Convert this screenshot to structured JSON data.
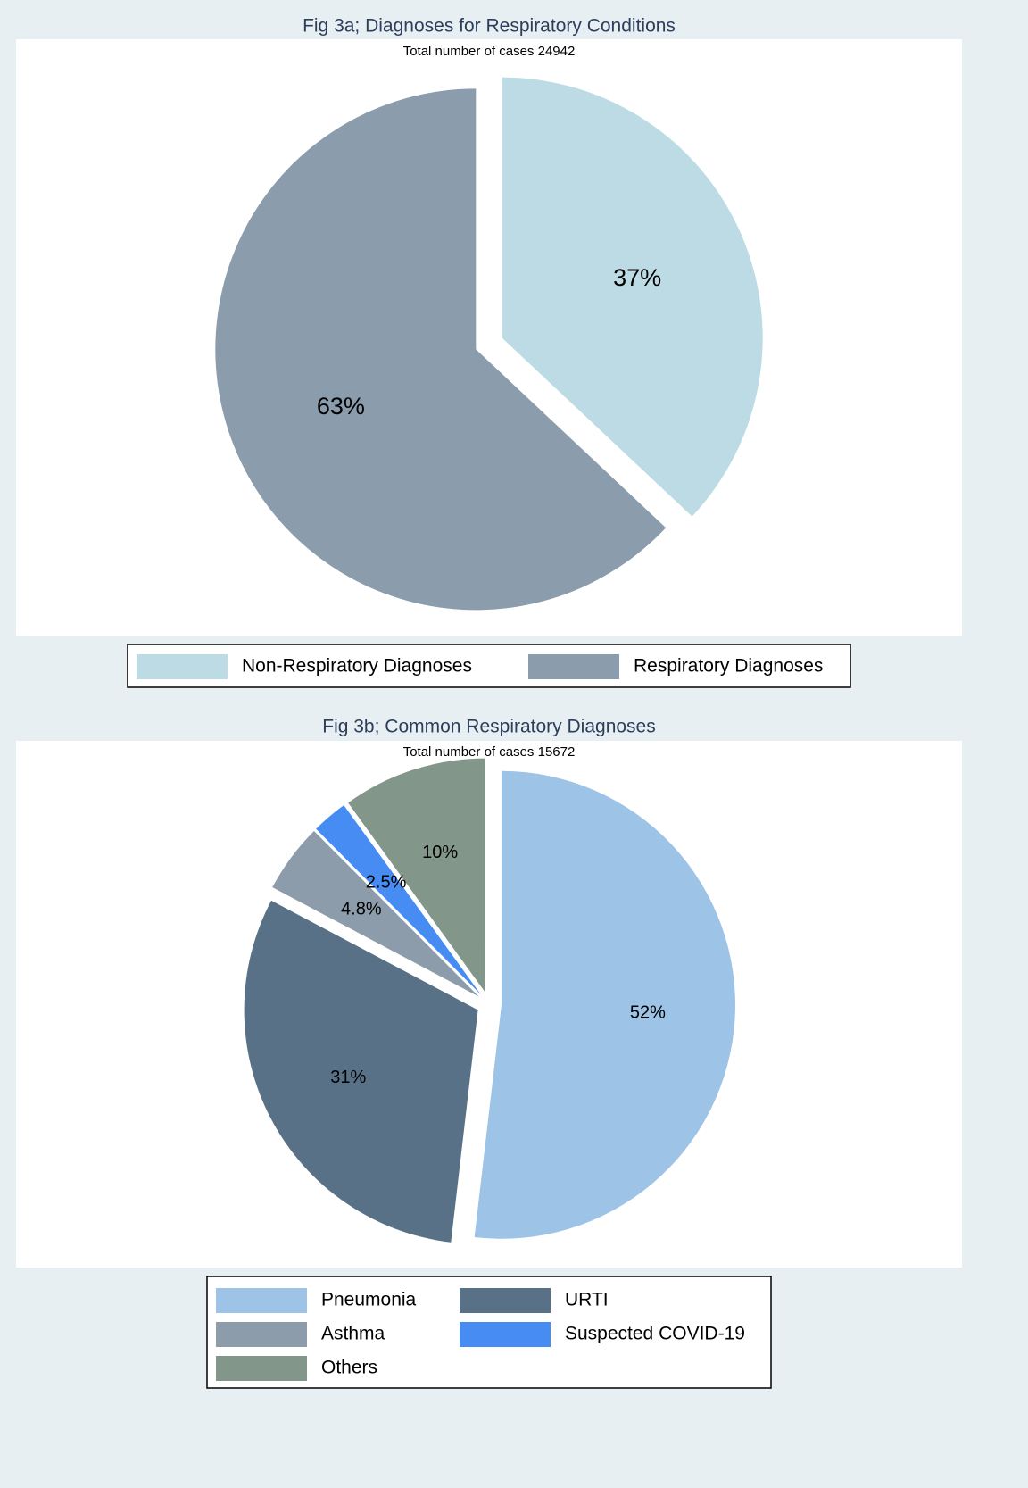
{
  "chart_data": [
    {
      "type": "pie",
      "title": "Fig 3a; Diagnoses for Respiratory Conditions",
      "subtitle": "Total number of cases  24942",
      "categories": [
        "Non-Respiratory Diagnoses",
        "Respiratory Diagnoses"
      ],
      "values": [
        37,
        63
      ],
      "value_labels": [
        "37%",
        "63%"
      ],
      "colors": [
        "#bddbe5",
        "#8b9cad"
      ]
    },
    {
      "type": "pie",
      "title": "Fig 3b; Common Respiratory Diagnoses",
      "subtitle": "Total number of cases  15672",
      "categories": [
        "Pneumonia",
        "URTI",
        "Asthma",
        "Suspected COVID-19",
        "Others"
      ],
      "values": [
        52,
        31,
        4.8,
        2.5,
        10
      ],
      "value_labels": [
        "52%",
        "31%",
        "4.8%",
        "2.5%",
        "10%"
      ],
      "colors": [
        "#9dc3e6",
        "#587186",
        "#8d9cab",
        "#468cf3",
        "#82968a"
      ]
    }
  ]
}
